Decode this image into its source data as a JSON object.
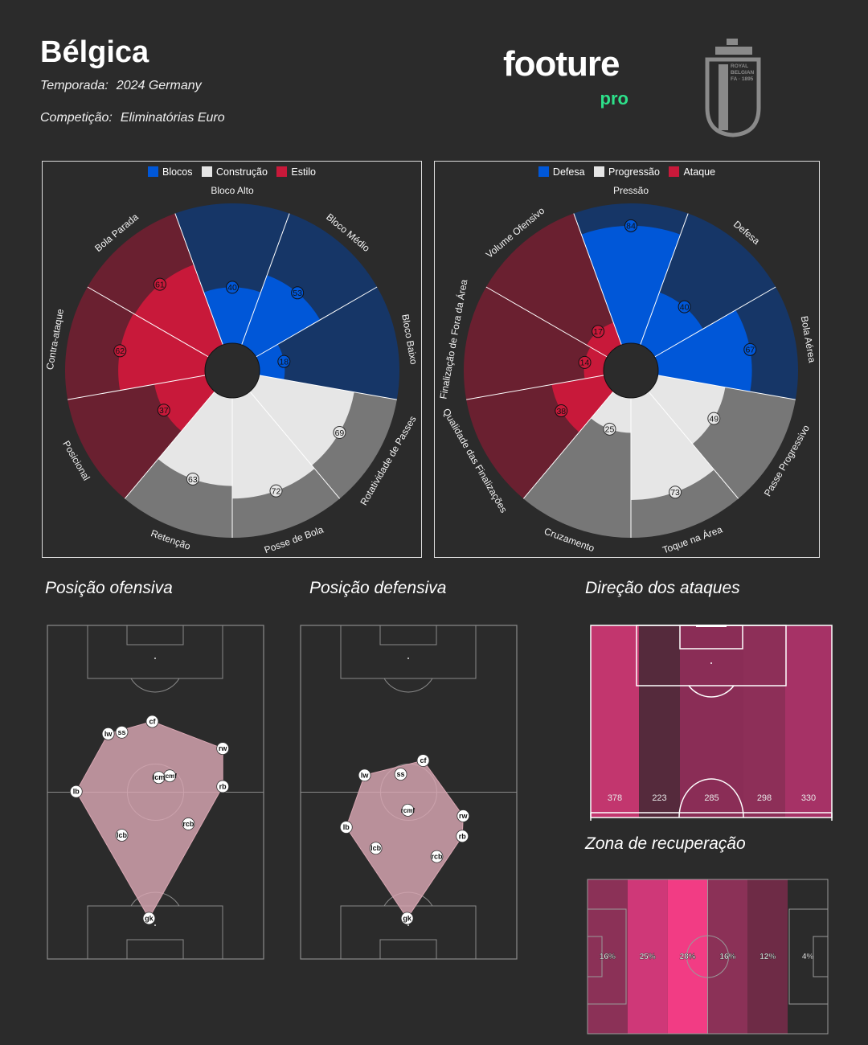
{
  "header": {
    "team_name": "Bélgica",
    "season_label": "Temporada:",
    "season_value": "2024 Germany",
    "competition_label": "Competição:",
    "competition_value": "Eliminatórias Euro",
    "brand_word": "footure",
    "brand_sub": "pro",
    "crest_lines": [
      "ROYAL",
      "BELGIAN",
      "FA · 1895"
    ]
  },
  "colors": {
    "background": "#2b2b2b",
    "blue": "#0057d8",
    "blue_dark": "#163667",
    "white": "#e6e6e6",
    "grey": "#777777",
    "red": "#c8193a",
    "red_dark": "#6a2030",
    "pitch_line": "#8a8a8a",
    "shape_fill": "#d9a7b3",
    "brand_green": "#2de08a"
  },
  "chart_data": [
    {
      "type": "polar-bar",
      "legend": [
        {
          "name": "Blocos",
          "color": "#0057d8"
        },
        {
          "name": "Construção",
          "color": "#e6e6e6"
        },
        {
          "name": "Estilo",
          "color": "#c8193a"
        }
      ],
      "categories": [
        "Bloco Alto",
        "Bloco Médio",
        "Bloco Baixo",
        "Rotatividade de Passes",
        "Posse de Bola",
        "Retenção",
        "Posicional",
        "Contra-ataque",
        "Bola Parada"
      ],
      "groups": [
        "Blocos",
        "Blocos",
        "Blocos",
        "Construção",
        "Construção",
        "Construção",
        "Estilo",
        "Estilo",
        "Estilo"
      ],
      "values": [
        40,
        53,
        18,
        69,
        72,
        63,
        37,
        62,
        61
      ],
      "rlim": [
        0,
        100
      ]
    },
    {
      "type": "polar-bar",
      "legend": [
        {
          "name": "Defesa",
          "color": "#0057d8"
        },
        {
          "name": "Progressão",
          "color": "#e6e6e6"
        },
        {
          "name": "Ataque",
          "color": "#c8193a"
        }
      ],
      "categories": [
        "Pressão",
        "Defesa",
        "Bola Aérea",
        "Passe Progressivo",
        "Toque na Área",
        "Cruzamento",
        "Qualidade das Finalizações",
        "Finalização de Fora da Área",
        "Volume Ofensivo"
      ],
      "groups": [
        "Defesa",
        "Defesa",
        "Defesa",
        "Progressão",
        "Progressão",
        "Progressão",
        "Ataque",
        "Ataque",
        "Ataque"
      ],
      "values": [
        84,
        40,
        67,
        49,
        73,
        25,
        38,
        14,
        17
      ],
      "rlim": [
        0,
        100
      ]
    },
    {
      "type": "scatter",
      "title": "Posição ofensiva",
      "xlim": [
        0,
        100
      ],
      "ylim": [
        0,
        100
      ],
      "points": [
        {
          "label": "cf",
          "x": 48.5,
          "y": 71.2
        },
        {
          "label": "ss",
          "x": 34.4,
          "y": 68.0
        },
        {
          "label": "lw",
          "x": 28.1,
          "y": 67.5
        },
        {
          "label": "rw",
          "x": 81.1,
          "y": 63.1
        },
        {
          "label": "rcmf",
          "x": 56.6,
          "y": 54.9
        },
        {
          "label": "lcm",
          "x": 51.5,
          "y": 54.4
        },
        {
          "label": "lb",
          "x": 13.3,
          "y": 50.2
        },
        {
          "label": "rb",
          "x": 81.1,
          "y": 51.7
        },
        {
          "label": "rcb",
          "x": 65.2,
          "y": 40.5
        },
        {
          "label": "lcb",
          "x": 34.4,
          "y": 37.1
        },
        {
          "label": "gk",
          "x": 47.0,
          "y": 12.2
        }
      ],
      "hull": [
        "cf",
        "rw",
        "rb",
        "gk",
        "lb",
        "lw"
      ]
    },
    {
      "type": "scatter",
      "title": "Posição defensiva",
      "xlim": [
        0,
        100
      ],
      "ylim": [
        0,
        100
      ],
      "points": [
        {
          "label": "cf",
          "x": 56.7,
          "y": 59.5
        },
        {
          "label": "ss",
          "x": 46.3,
          "y": 55.4
        },
        {
          "label": "lw",
          "x": 29.6,
          "y": 55.1
        },
        {
          "label": "rcmf",
          "x": 49.6,
          "y": 44.6
        },
        {
          "label": "rw",
          "x": 75.2,
          "y": 42.9
        },
        {
          "label": "rb",
          "x": 74.8,
          "y": 36.8
        },
        {
          "label": "lb",
          "x": 21.1,
          "y": 39.5
        },
        {
          "label": "lcb",
          "x": 34.8,
          "y": 33.2
        },
        {
          "label": "rcb",
          "x": 63.0,
          "y": 30.7
        },
        {
          "label": "gk",
          "x": 49.3,
          "y": 12.2
        }
      ],
      "hull": [
        "cf",
        "rw",
        "rb",
        "gk",
        "lb",
        "lw"
      ]
    },
    {
      "type": "bar",
      "title": "Direção dos ataques",
      "categories": [
        "1",
        "2",
        "3",
        "4",
        "5"
      ],
      "values": [
        378,
        223,
        285,
        298,
        330
      ],
      "labels": [
        "378",
        "223",
        "285",
        "298",
        "330"
      ],
      "colors": [
        "#c2366e",
        "#552a3c",
        "#8a2d56",
        "#8d2f58",
        "#a63266"
      ]
    },
    {
      "type": "bar",
      "title": "Zona de recuperação",
      "categories": [
        "1",
        "2",
        "3",
        "4",
        "5",
        "6"
      ],
      "values": [
        16,
        25,
        28,
        16,
        12,
        4
      ],
      "labels": [
        "16%",
        "25%",
        "28%",
        "16%",
        "12%",
        "4%"
      ],
      "colors": [
        "#8b3157",
        "#cf3878",
        "#f23c84",
        "#8b3157",
        "#6e2b46",
        "#2b2b2b"
      ]
    }
  ]
}
